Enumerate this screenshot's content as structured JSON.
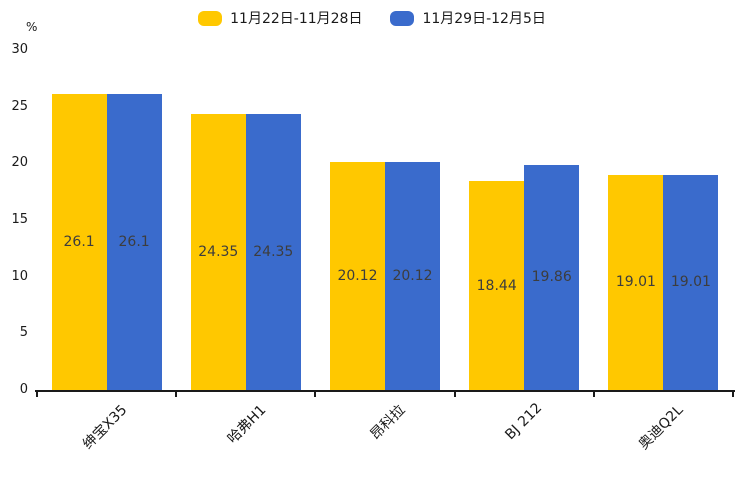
{
  "colors": {
    "series1": "#FFC800",
    "series2": "#3A6BCC",
    "axis": "#1a1a1a",
    "bar_label": "#3d3d3d",
    "background": "#ffffff"
  },
  "chart_data": {
    "type": "bar",
    "title": "",
    "xlabel": "",
    "ylabel": "%",
    "ylim": [
      0,
      30
    ],
    "yticks": [
      0,
      5,
      10,
      15,
      20,
      25,
      30
    ],
    "grid": false,
    "legend_position": "top-center",
    "categories": [
      "绅宝X35",
      "哈弗H1",
      "昂科拉",
      "BJ 212",
      "奥迪Q2L"
    ],
    "series": [
      {
        "name": "11月22日-11月28日",
        "color": "#FFC800",
        "values": [
          26.1,
          24.35,
          20.12,
          18.44,
          19.01
        ]
      },
      {
        "name": "11月29日-12月5日",
        "color": "#3A6BCC",
        "values": [
          26.1,
          24.35,
          20.12,
          19.86,
          19.01
        ]
      }
    ],
    "bar_value_labels": [
      [
        "26.1",
        "24.35",
        "20.12",
        "18.44",
        "19.01"
      ],
      [
        "26.1",
        "24.35",
        "20.12",
        "19.86",
        "19.01"
      ]
    ]
  }
}
